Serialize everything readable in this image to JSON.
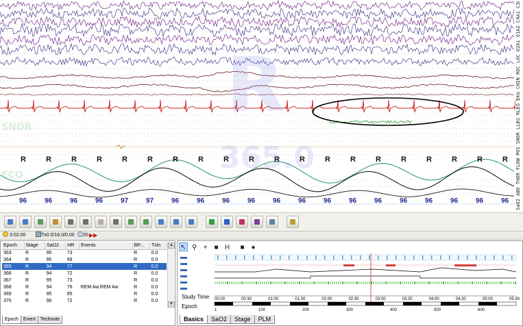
{
  "trace": {
    "channel_labels": "SaO2 ABD THOR FLOW POS SNOR LLEG RLEG EKG CHIN ROC LOC O2A1 O1A2 C4A1 C3A2 F4A1 F3A2",
    "watermark_letter": "R",
    "watermark_number": "365.0",
    "side_labels": [
      "SNOR",
      "ECO"
    ],
    "r_markers": [
      "R",
      "R",
      "R",
      "R",
      "R",
      "R",
      "R",
      "R",
      "R",
      "R",
      "R",
      "R",
      "R",
      "R",
      "R",
      "R",
      "R",
      "R",
      "R",
      "R",
      "R",
      "R"
    ],
    "hr_values": [
      "96",
      "96",
      "96",
      "96",
      "97",
      "97",
      "96",
      "96",
      "96",
      "96",
      "96",
      "96",
      "96",
      "96",
      "96",
      "96",
      "96",
      "96",
      "96",
      "96"
    ],
    "colors": {
      "eeg": "#4a3c8c",
      "eeg2": "#7b2c8e",
      "eog": "#6a1818",
      "ekg": "#c82020",
      "leg": "#2a9a2a",
      "resp_green": "#3a9a78",
      "resp_black": "#1a1a1a",
      "grid": "#c8c8c8",
      "ellipse": "#000000"
    }
  },
  "toolbar": {
    "buttons": [
      "open-icon",
      "save-icon",
      "import-icon",
      "refresh-icon",
      "print-icon",
      "print-preview-icon",
      "notes-icon",
      "montage-icon",
      "filter-icon",
      "channels-icon",
      "export-icon",
      "import-alt-icon",
      "import-events-icon",
      "user-icon",
      "brain-icon",
      "lungs-icon",
      "tools-icon",
      "hypnogram-icon",
      "report-icon"
    ]
  },
  "statusbar": {
    "time": "3:02:00",
    "tx_label": "Tx",
    "tx_value": "0.0/16.0/0.00",
    "epoch_box": "20"
  },
  "epoch_table": {
    "columns": [
      "Epoch",
      "Stage",
      "SaO2",
      "HR",
      "Events",
      "BP...",
      "Txln"
    ],
    "rows": [
      [
        "363",
        "R",
        "95",
        "73",
        "",
        "R",
        "0.0"
      ],
      [
        "364",
        "R",
        "95",
        "69",
        "",
        "R",
        "0.0"
      ],
      [
        "365",
        "R",
        "94",
        "77",
        "",
        "R",
        "0.0"
      ],
      [
        "366",
        "R",
        "94",
        "72",
        "",
        "R",
        "0.0"
      ],
      [
        "367",
        "R",
        "95",
        "73",
        "",
        "R",
        "0.0"
      ],
      [
        "368",
        "R",
        "94",
        "76",
        "REM Aw,REM Aw",
        "R",
        "0.0"
      ],
      [
        "369",
        "R",
        "95",
        "85",
        "",
        "R",
        "0.0"
      ],
      [
        "370",
        "R",
        "96",
        "72",
        "",
        "R",
        "0.0"
      ]
    ],
    "selected_index": 2,
    "tabs": [
      "Epoch",
      "Event",
      "Technote"
    ],
    "active_tab": "Epoch"
  },
  "overview": {
    "tools": [
      "pointer-icon",
      "zoom-icon",
      "crosshair-icon",
      "camera-icon",
      "measure-icon",
      "stop-icon",
      "record-icon"
    ],
    "study_time_label": "Study Time",
    "epoch_label": "Epoch",
    "time_ticks": [
      "00:00",
      "00:30",
      "01:00",
      "01:30",
      "02:00",
      "02:30",
      "03:00",
      "03:30",
      "04:00",
      "04:30",
      "05:00",
      "05:30"
    ],
    "epoch_ticks": [
      "1",
      "100",
      "200",
      "300",
      "400",
      "500",
      "600"
    ],
    "cursor_color": "#e02020",
    "tabs": [
      "Basics",
      "SaO2",
      "Stage",
      "PLM"
    ],
    "active_tab": "Basics"
  }
}
